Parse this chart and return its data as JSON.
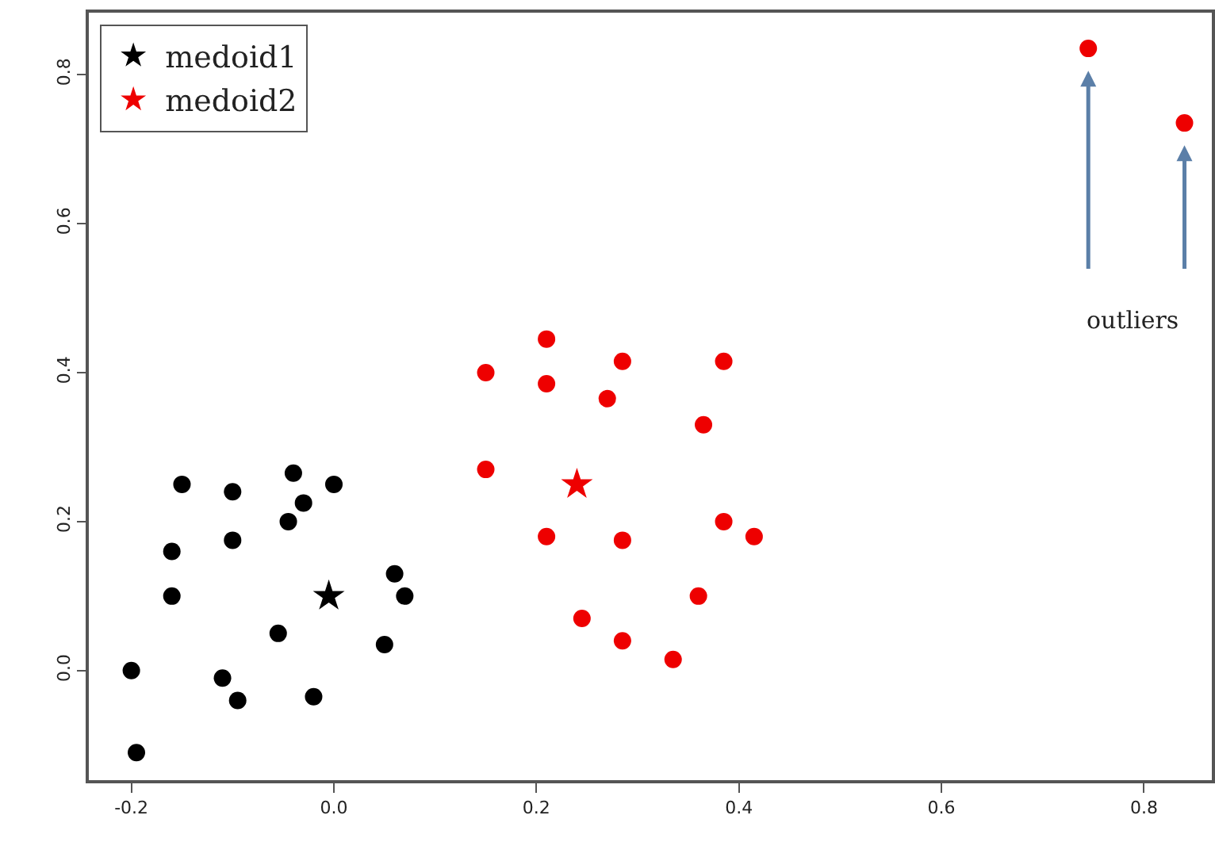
{
  "chart_data": {
    "type": "scatter",
    "xlim": [
      -0.242,
      0.867
    ],
    "ylim": [
      -0.147,
      0.883
    ],
    "xticks": [
      {
        "value": -0.2,
        "label": "-0.2"
      },
      {
        "value": 0,
        "label": "0.0"
      },
      {
        "value": 0.2,
        "label": "0.2"
      },
      {
        "value": 0.4,
        "label": "0.4"
      },
      {
        "value": 0.6,
        "label": "0.6"
      },
      {
        "value": 0.8,
        "label": "0.8"
      }
    ],
    "yticks": [
      {
        "value": 0,
        "label": "0.0"
      },
      {
        "value": 0.2,
        "label": "0.2"
      },
      {
        "value": 0.4,
        "label": "0.4"
      },
      {
        "value": 0.6,
        "label": "0.6"
      },
      {
        "value": 0.8,
        "label": "0.8"
      }
    ],
    "legend": "top left",
    "marker": "circle",
    "series": [
      {
        "color": "#000000",
        "x": [
          -0.15,
          -0.1,
          -0.04,
          0.0,
          -0.03,
          -0.045,
          -0.1,
          -0.16,
          -0.16,
          0.06,
          0.07,
          -0.055,
          0.05,
          -0.2,
          -0.11,
          -0.095,
          -0.02,
          -0.195
        ],
        "values": [
          0.25,
          0.24,
          0.265,
          0.25,
          0.225,
          0.2,
          0.175,
          0.16,
          0.1,
          0.13,
          0.1,
          0.05,
          0.035,
          0.0,
          -0.01,
          -0.04,
          -0.035,
          -0.11
        ]
      },
      {
        "color": "#ee0000",
        "x": [
          0.21,
          0.15,
          0.21,
          0.285,
          0.385,
          0.27,
          0.365,
          0.15,
          0.21,
          0.285,
          0.385,
          0.415,
          0.36,
          0.245,
          0.285,
          0.335,
          0.745,
          0.84
        ],
        "values": [
          0.445,
          0.4,
          0.385,
          0.415,
          0.415,
          0.365,
          0.33,
          0.27,
          0.18,
          0.175,
          0.2,
          0.18,
          0.1,
          0.07,
          0.04,
          0.015,
          0.835,
          0.735
        ]
      },
      {
        "name": "medoid1",
        "color": "#000000",
        "marker": "star",
        "x": [
          -0.005
        ],
        "values": [
          0.1
        ]
      },
      {
        "name": "medoid2",
        "color": "#ee0000",
        "marker": "star",
        "x": [
          0.24
        ],
        "values": [
          0.25
        ]
      }
    ],
    "annotations": [
      "outliers"
    ]
  }
}
